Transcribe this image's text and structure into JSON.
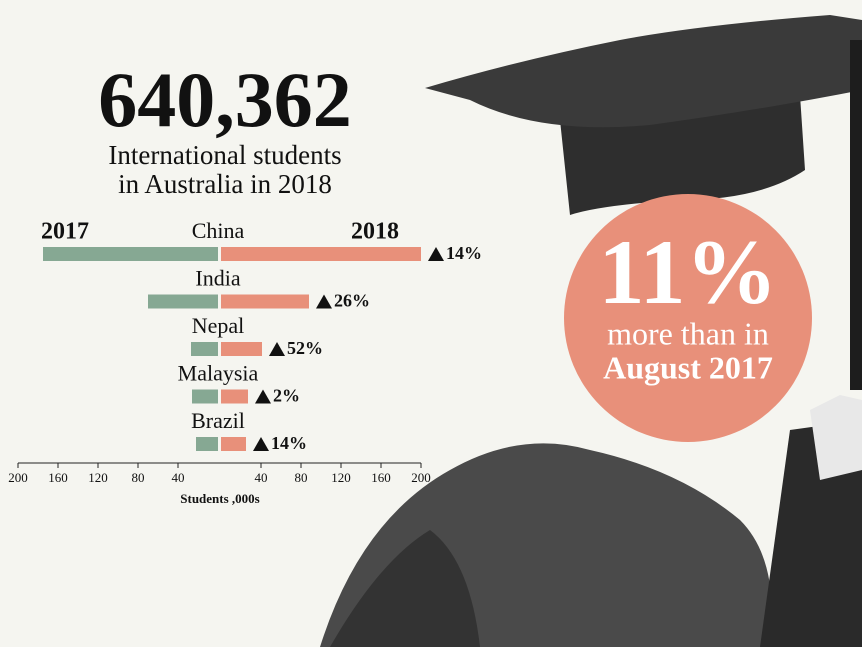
{
  "headline": "640,362",
  "subtitle_lines": [
    "International students",
    "in Australia in 2018"
  ],
  "callout": {
    "big": "11%",
    "line1": "more than in",
    "line2": "August 2017"
  },
  "chart_data": {
    "type": "butterfly",
    "categories": [
      "China",
      "India",
      "Nepal",
      "Malaysia",
      "Brazil"
    ],
    "series": [
      {
        "name": "2017",
        "color": "#86a893",
        "values": [
          175,
          70,
          27,
          26,
          22
        ]
      },
      {
        "name": "2018",
        "color": "#e8907a",
        "values": [
          200,
          88,
          41,
          27,
          25
        ]
      }
    ],
    "change_labels": [
      "14%",
      "26%",
      "52%",
      "2%",
      "14%"
    ],
    "xlim": [
      0,
      200
    ],
    "xticks_left": [
      200,
      160,
      120,
      80,
      40
    ],
    "xticks_right": [
      40,
      80,
      120,
      160,
      200
    ],
    "x_label": "Students ,000s"
  }
}
